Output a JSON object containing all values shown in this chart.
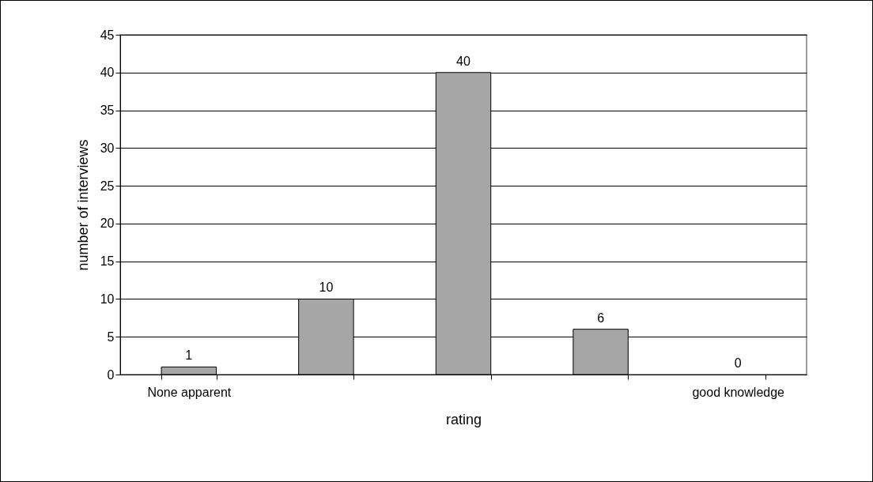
{
  "chart_data": {
    "type": "bar",
    "xlabel": "rating",
    "ylabel": "number of interviews",
    "categories": [
      "None apparent",
      null,
      null,
      null,
      "good knowledge"
    ],
    "values": [
      1,
      10,
      40,
      6,
      0
    ],
    "color": "#a6a6a6",
    "ylim": [
      0,
      45
    ],
    "yticks": [
      0,
      5,
      10,
      15,
      20,
      25,
      30,
      35,
      40,
      45
    ],
    "grid": "y",
    "data_labels": true
  }
}
